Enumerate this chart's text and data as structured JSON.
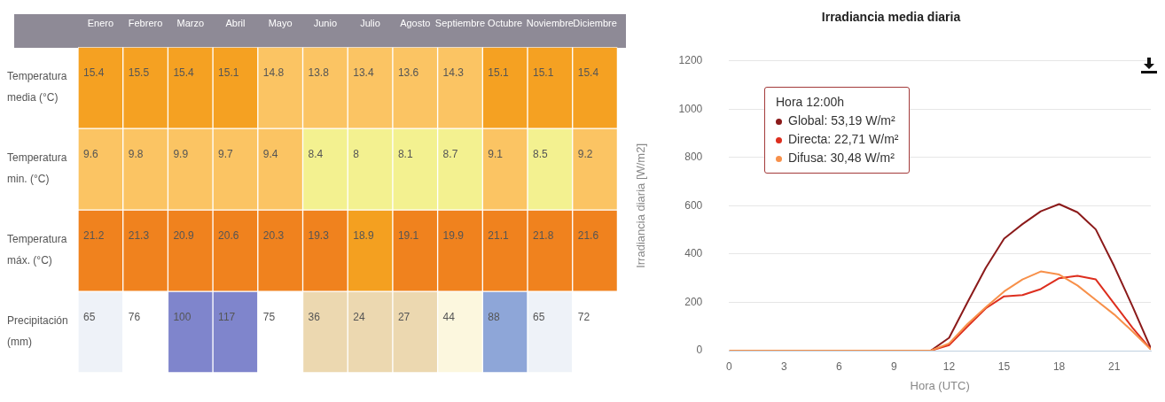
{
  "chart_data": [
    {
      "type": "heatmap",
      "categories": [
        "Enero",
        "Febrero",
        "Marzo",
        "Abril",
        "Mayo",
        "Junio",
        "Julio",
        "Agosto",
        "Septiembre",
        "Octubre",
        "Noviembre",
        "Diciembre"
      ],
      "y_categories": [
        "Temperatura media (°C)",
        "Temperatura min. (°C)",
        "Temperatura máx. (°C)",
        "Precipitación (mm)"
      ],
      "cells": [
        [
          15.4,
          15.5,
          15.4,
          15.1,
          14.8,
          13.8,
          13.4,
          13.6,
          14.3,
          15.1,
          15.1,
          15.4
        ],
        [
          9.6,
          9.8,
          9.9,
          9.7,
          9.4,
          8.4,
          8,
          8.1,
          8.7,
          9.1,
          8.5,
          9.2
        ],
        [
          21.2,
          21.3,
          20.9,
          20.6,
          20.3,
          19.3,
          18.9,
          19.1,
          19.9,
          21.1,
          21.8,
          21.6
        ],
        [
          65,
          76,
          100,
          117,
          75,
          36,
          24,
          27,
          44,
          88,
          65,
          72
        ]
      ],
      "colors": [
        [
          "#f5a122",
          "#f5a122",
          "#f5a122",
          "#f5a122",
          "#fbc463",
          "#fbc463",
          "#fbc463",
          "#fbc463",
          "#fbc463",
          "#f5a122",
          "#f5a122",
          "#f5a122"
        ],
        [
          "#fbc463",
          "#fbc463",
          "#fbc463",
          "#fbc463",
          "#fbc463",
          "#f3f190",
          "#f3f190",
          "#f3f190",
          "#f3f190",
          "#fbc463",
          "#f3f190",
          "#fbc463"
        ],
        [
          "#f0821e",
          "#f0821e",
          "#f0821e",
          "#f0821e",
          "#f0821e",
          "#f0821e",
          "#f4a020",
          "#f0821e",
          "#f0821e",
          "#f0821e",
          "#f0821e",
          "#f0821e"
        ],
        [
          "#eef2f8",
          "#ffffff",
          "#7f85cc",
          "#7f85cc",
          "#ffffff",
          "#ecd8b0",
          "#ecd8b0",
          "#ecd8b0",
          "#fcf7de",
          "#8ea6d8",
          "#eef2f8",
          "#ffffff"
        ]
      ],
      "data_labels": true
    },
    {
      "type": "line",
      "title": "Irradiancia media diaria",
      "xlabel": "Hora (UTC)",
      "ylabel": "Irradiancia diaria [W/m2]",
      "x": [
        0,
        1,
        2,
        3,
        4,
        5,
        6,
        7,
        8,
        9,
        10,
        11,
        12,
        13,
        14,
        15,
        16,
        17,
        18,
        19,
        20,
        21,
        22,
        23
      ],
      "series": [
        {
          "color": "#8b1a1a",
          "values": [
            null,
            null,
            null,
            null,
            null,
            null,
            null,
            null,
            null,
            null,
            null,
            0,
            53,
            200,
            343,
            464,
            524,
            577,
            607,
            573,
            502,
            350,
            184,
            10
          ]
        },
        {
          "color": "#dd2e1e",
          "values": [
            null,
            null,
            null,
            null,
            null,
            null,
            null,
            null,
            null,
            null,
            null,
            0,
            23,
            100,
            175,
            225,
            230,
            255,
            300,
            310,
            295,
            195,
            95,
            5
          ]
        },
        {
          "color": "#f7904a",
          "values": [
            0,
            0,
            0,
            0,
            0,
            0,
            0,
            0,
            0,
            0,
            0,
            0,
            30,
            110,
            180,
            245,
            295,
            328,
            315,
            270,
            210,
            150,
            80,
            5
          ]
        }
      ],
      "xlim": [
        0,
        23
      ],
      "xticks": [
        0,
        3,
        6,
        9,
        12,
        15,
        18,
        21
      ],
      "ylim": [
        0,
        1200
      ],
      "yticks": [
        0,
        200,
        400,
        600,
        800,
        1000,
        1200
      ],
      "grid": "y",
      "legend": false,
      "marker": "none",
      "annotations": [
        "Hora 12:00h",
        "Global: 53,19 W/m²",
        "Directa: 22,71 W/m²",
        "Difusa: 30,48 W/m²"
      ]
    }
  ]
}
